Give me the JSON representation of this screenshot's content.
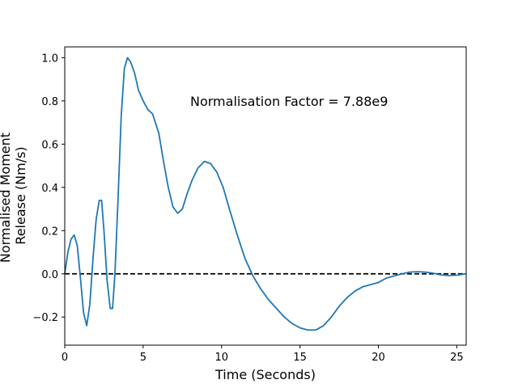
{
  "chart_data": {
    "type": "line",
    "title": "",
    "xlabel": "Time (Seconds)",
    "ylabel_lines": [
      "Normalised Moment",
      "Release (Nm/s)"
    ],
    "xlim": [
      0,
      25.6
    ],
    "ylim": [
      -0.33,
      1.05
    ],
    "xticks": [
      0,
      5,
      10,
      15,
      20,
      25
    ],
    "yticks": [
      -0.2,
      0.0,
      0.2,
      0.4,
      0.6,
      0.8,
      1.0
    ],
    "ytick_labels": [
      "−0.2",
      "0.0",
      "0.2",
      "0.4",
      "0.6",
      "0.8",
      "1.0"
    ],
    "grid": false,
    "annotation": {
      "text": "Normalisation Factor = 7.88e9",
      "x": 8.0,
      "y": 0.8
    },
    "reference_line": {
      "y": 0.0,
      "style": "dashed",
      "color": "#000000"
    },
    "series": [
      {
        "color": "#1f77b4",
        "x": [
          0,
          0.2,
          0.4,
          0.6,
          0.8,
          1.0,
          1.2,
          1.4,
          1.6,
          1.8,
          2.0,
          2.2,
          2.35,
          2.5,
          2.7,
          2.9,
          3.05,
          3.2,
          3.4,
          3.6,
          3.8,
          4.0,
          4.2,
          4.45,
          4.7,
          5.0,
          5.3,
          5.6,
          6.0,
          6.3,
          6.6,
          6.9,
          7.2,
          7.5,
          7.8,
          8.1,
          8.5,
          8.9,
          9.3,
          9.7,
          10.1,
          10.5,
          11.0,
          11.5,
          12.0,
          12.5,
          13.0,
          13.5,
          14.0,
          14.5,
          15.0,
          15.5,
          16.0,
          16.5,
          17.0,
          17.5,
          18.0,
          18.5,
          19.0,
          19.5,
          20.0,
          20.5,
          21.0,
          21.5,
          22.0,
          22.5,
          23.0,
          23.5,
          24.0,
          24.5,
          25.0,
          25.6
        ],
        "y": [
          0.0,
          0.1,
          0.16,
          0.18,
          0.13,
          -0.02,
          -0.18,
          -0.24,
          -0.14,
          0.07,
          0.25,
          0.34,
          0.34,
          0.2,
          -0.03,
          -0.16,
          -0.16,
          0.0,
          0.35,
          0.73,
          0.95,
          1.0,
          0.98,
          0.93,
          0.85,
          0.8,
          0.76,
          0.74,
          0.65,
          0.52,
          0.4,
          0.31,
          0.28,
          0.3,
          0.37,
          0.43,
          0.49,
          0.52,
          0.51,
          0.47,
          0.4,
          0.3,
          0.18,
          0.07,
          -0.01,
          -0.07,
          -0.12,
          -0.16,
          -0.2,
          -0.23,
          -0.25,
          -0.26,
          -0.26,
          -0.24,
          -0.2,
          -0.15,
          -0.11,
          -0.08,
          -0.06,
          -0.05,
          -0.04,
          -0.02,
          -0.01,
          0.0,
          0.008,
          0.01,
          0.008,
          0.003,
          -0.005,
          -0.008,
          -0.006,
          0.0
        ]
      }
    ]
  }
}
